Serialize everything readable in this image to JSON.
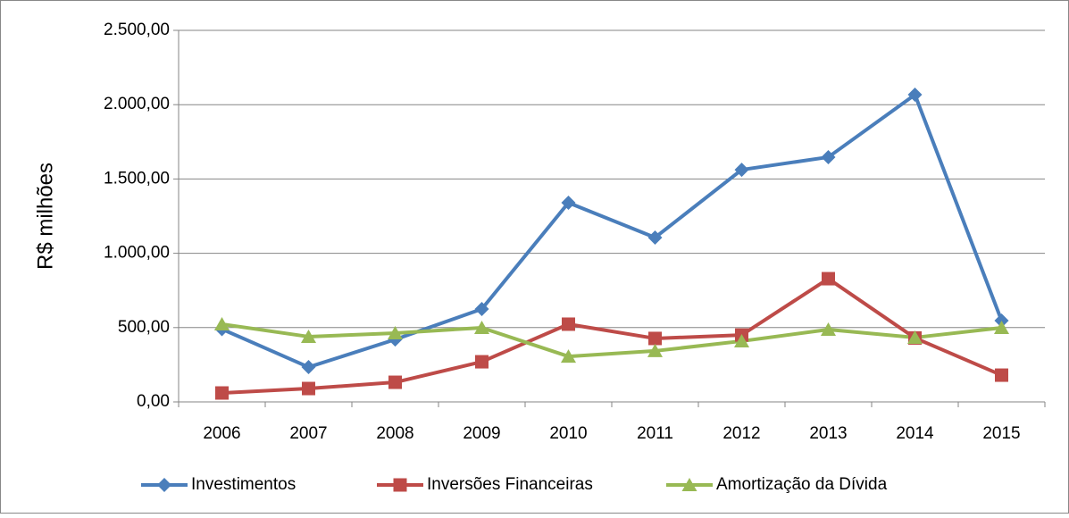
{
  "chart_data": {
    "type": "line",
    "y_label": "R$ milhões",
    "categories": [
      "2006",
      "2007",
      "2008",
      "2009",
      "2010",
      "2011",
      "2012",
      "2013",
      "2014",
      "2015"
    ],
    "series": [
      {
        "name": "Investimentos",
        "color": "#4a7ebb",
        "marker": "diamond",
        "values": [
          490,
          234,
          420,
          625,
          1340,
          1106,
          1562,
          1647,
          2067,
          547
        ]
      },
      {
        "name": "Inversões Financeiras",
        "color": "#be4b48",
        "marker": "square",
        "values": [
          60,
          90,
          132,
          270,
          523,
          427,
          450,
          829,
          430,
          180
        ]
      },
      {
        "name": "Amortização da Dívida",
        "color": "#98b954",
        "marker": "triangle",
        "values": [
          523,
          439,
          463,
          499,
          306,
          343,
          409,
          487,
          433,
          499
        ]
      }
    ],
    "ylim": [
      0,
      2500
    ],
    "yticks": [
      {
        "value": 0,
        "label": "0,00"
      },
      {
        "value": 500,
        "label": "500,00"
      },
      {
        "value": 1000,
        "label": "1.000,00"
      },
      {
        "value": 1500,
        "label": "1.500,00"
      },
      {
        "value": 2000,
        "label": "2.000,00"
      },
      {
        "value": 2500,
        "label": "2.500,00"
      }
    ],
    "grid": true,
    "legend": "bottom"
  }
}
